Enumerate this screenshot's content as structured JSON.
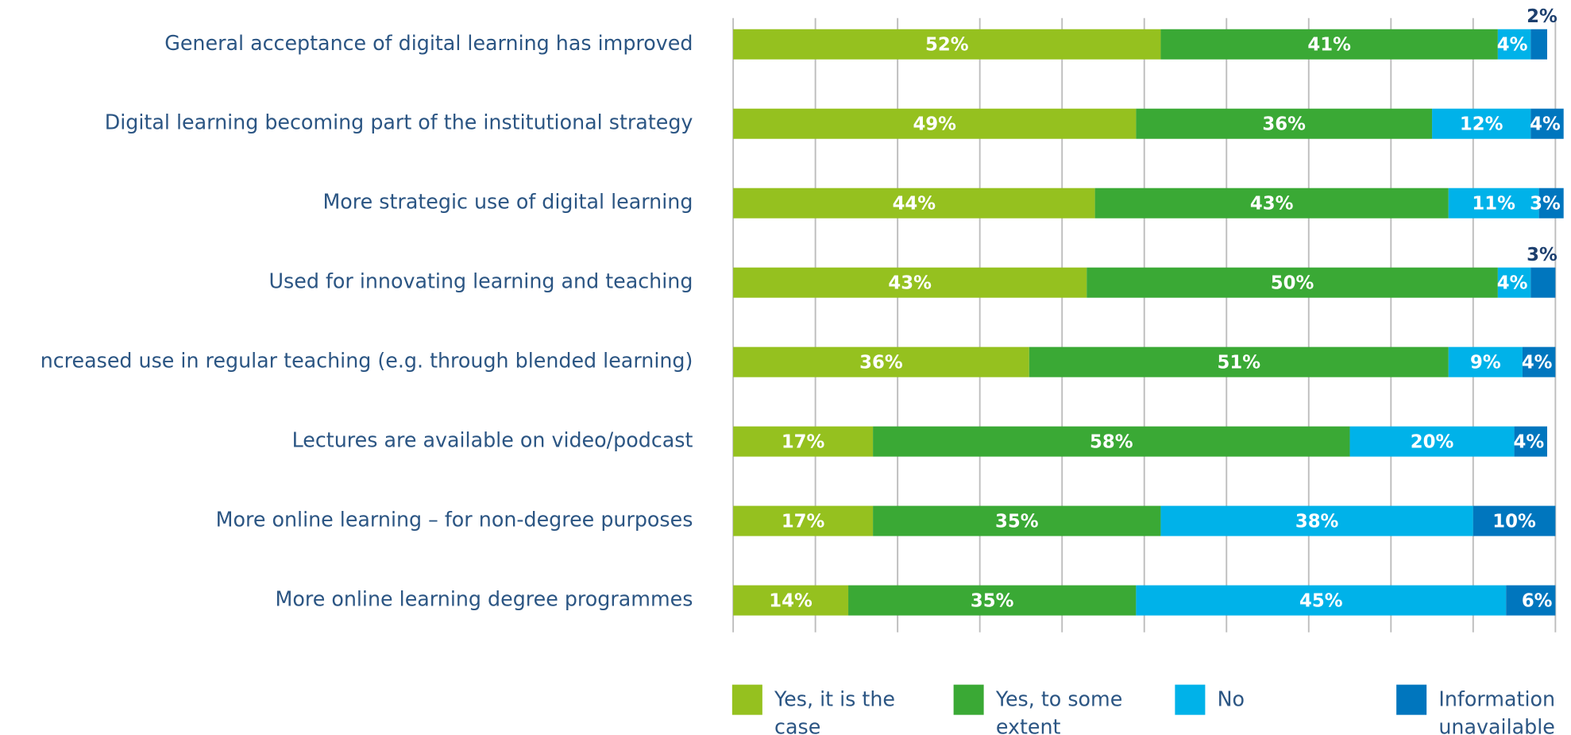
{
  "chart_data": {
    "type": "stacked-barh",
    "categories": [
      "General acceptance of digital learning has improved",
      "Digital learning becoming part of the institutional strategy",
      "More strategic use of digital learning",
      "Used for innovating learning and teaching",
      "ncreased use in regular teaching (e.g. through blended learning)",
      "Lectures are available on video/podcast",
      "More online learning – for non-degree purposes",
      "More online learning degree programmes"
    ],
    "series": [
      {
        "name": "Yes, it is the case",
        "color": "#95c11f",
        "values": [
          52,
          49,
          44,
          43,
          36,
          17,
          17,
          14
        ],
        "value_labels": [
          "52%",
          "49%",
          "44%",
          "43%",
          "36%",
          "17%",
          "17%",
          "14%"
        ]
      },
      {
        "name": "Yes, to some extent",
        "color": "#3aa935",
        "values": [
          41,
          36,
          43,
          50,
          51,
          58,
          35,
          35
        ],
        "value_labels": [
          "41%",
          "36%",
          "43%",
          "50%",
          "51%",
          "58%",
          "35%",
          "35%"
        ]
      },
      {
        "name": "No",
        "color": "#00b2e9",
        "values": [
          4,
          12,
          11,
          4,
          9,
          20,
          38,
          45
        ],
        "value_labels": [
          "4%",
          "12%",
          "11%",
          "4%",
          "9%",
          "20%",
          "38%",
          "45%"
        ]
      },
      {
        "name": "Information unavailable",
        "color": "#0076be",
        "values": [
          2,
          4,
          3,
          3,
          4,
          4,
          10,
          6
        ],
        "value_labels": [
          "2%",
          "4%",
          "3%",
          "3%",
          "4%",
          "4%",
          "10%",
          "6%"
        ]
      }
    ],
    "xlim": [
      0,
      100
    ],
    "xticks": [
      0,
      10,
      20,
      30,
      40,
      50,
      60,
      70,
      80,
      90,
      100
    ],
    "grid": true
  }
}
